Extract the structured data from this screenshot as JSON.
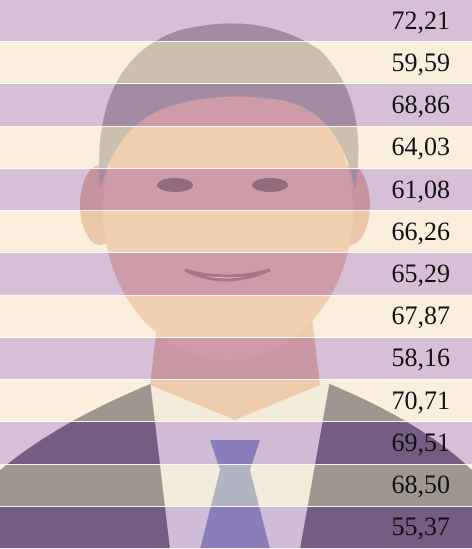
{
  "table": {
    "rows": [
      "72,21",
      "59,59",
      "68,86",
      "64,03",
      "61,08",
      "66,26",
      "65,29",
      "67,87",
      "58,16",
      "70,71",
      "69,51",
      "68,50",
      "55,37"
    ]
  }
}
